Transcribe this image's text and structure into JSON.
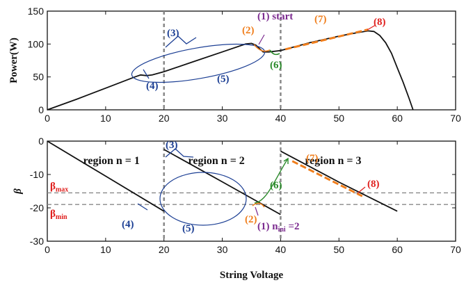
{
  "colors": {
    "curve": "#111111",
    "blue": "#1c3f94",
    "orange": "#f07e1c",
    "purple": "#7b2a8f",
    "green": "#2a8a2a",
    "red": "#e0201e",
    "grid": "#888888"
  },
  "chart_data": [
    {
      "type": "line",
      "ylabel": "Power(W)",
      "xlim": [
        0,
        70
      ],
      "ylim": [
        0,
        150
      ],
      "xticks": [
        "0",
        "10",
        "20",
        "30",
        "40",
        "50",
        "60",
        "70"
      ],
      "yticks": [
        "0",
        "50",
        "100",
        "150"
      ],
      "vlines": [
        20,
        40
      ],
      "series": [
        {
          "x": [
            0,
            5,
            10,
            15,
            16,
            17,
            18,
            20,
            25,
            30,
            34,
            35,
            35.8,
            36.5,
            37,
            38,
            40,
            45,
            50,
            53,
            55,
            56,
            57,
            58,
            59,
            60,
            61,
            62,
            62.7
          ],
          "y": [
            0,
            16,
            33,
            50,
            53,
            52,
            53,
            58,
            73,
            88,
            100,
            101,
            98,
            92,
            88,
            88,
            90,
            102,
            112,
            117,
            120,
            119,
            113,
            102,
            86,
            64,
            42,
            18,
            0
          ]
        }
      ],
      "annotations": [
        {
          "label": "(1) start",
          "color": "purple",
          "x": 35.5,
          "y": 101
        },
        {
          "label": "(2)",
          "color": "orange",
          "x": 34.5,
          "y": 100
        },
        {
          "label": "(3)",
          "color": "blue",
          "x": 25,
          "y": 78
        },
        {
          "label": "(4)",
          "color": "blue",
          "x": 16,
          "y": 53
        },
        {
          "label": "(5)",
          "color": "blue",
          "x": 28,
          "y": 75
        },
        {
          "label": "(6)",
          "color": "green",
          "x": 38,
          "y": 88
        },
        {
          "label": "(7)",
          "color": "orange",
          "x": 47,
          "y": 105
        },
        {
          "label": "(8)",
          "color": "red",
          "x": 55,
          "y": 120
        }
      ]
    },
    {
      "type": "line",
      "xlabel": "String Voltage",
      "ylabel": "β",
      "xlim": [
        0,
        70
      ],
      "ylim": [
        -30,
        0
      ],
      "xticks": [
        "0",
        "10",
        "20",
        "30",
        "40",
        "50",
        "60",
        "70"
      ],
      "yticks": [
        "0",
        "-10",
        "-20",
        "-30"
      ],
      "vlines": [
        20,
        40
      ],
      "hlines": [
        {
          "label": "β",
          "sub": "max",
          "y": -15.5
        },
        {
          "label": "β",
          "sub": "min",
          "y": -19
        }
      ],
      "series": [
        {
          "segments": [
            {
              "x": [
                0,
                10,
                20
              ],
              "y": [
                0,
                -10.5,
                -21
              ]
            },
            {
              "x": [
                20,
                30,
                40
              ],
              "y": [
                -2.5,
                -12.2,
                -22
              ]
            },
            {
              "x": [
                40,
                50,
                60
              ],
              "y": [
                -3,
                -12.3,
                -21
              ]
            }
          ]
        }
      ],
      "regions": [
        {
          "label": "region n = 1",
          "x": 11
        },
        {
          "label": "region n = 2",
          "x": 29
        },
        {
          "label": "region n = 3",
          "x": 49
        }
      ],
      "annotations": [
        {
          "label": "(1)",
          "color": "purple",
          "x": 36.5,
          "y": -19,
          "extra": "n",
          "extra_sub": "ini",
          "extra_tail": " =2"
        },
        {
          "label": "(2)",
          "color": "orange",
          "x": 36,
          "y": -19
        },
        {
          "label": "(3)",
          "color": "blue",
          "x": 22,
          "y": -5
        },
        {
          "label": "(4)",
          "color": "blue",
          "x": 18,
          "y": -19
        },
        {
          "label": "(5)",
          "color": "blue",
          "x": 28,
          "y": -20
        },
        {
          "label": "(6)",
          "color": "green",
          "x": 41.5,
          "y": -5
        },
        {
          "label": "(7)",
          "color": "orange",
          "x": 47,
          "y": -6
        },
        {
          "label": "(8)",
          "color": "red",
          "x": 53.5,
          "y": -16.5
        }
      ]
    }
  ]
}
